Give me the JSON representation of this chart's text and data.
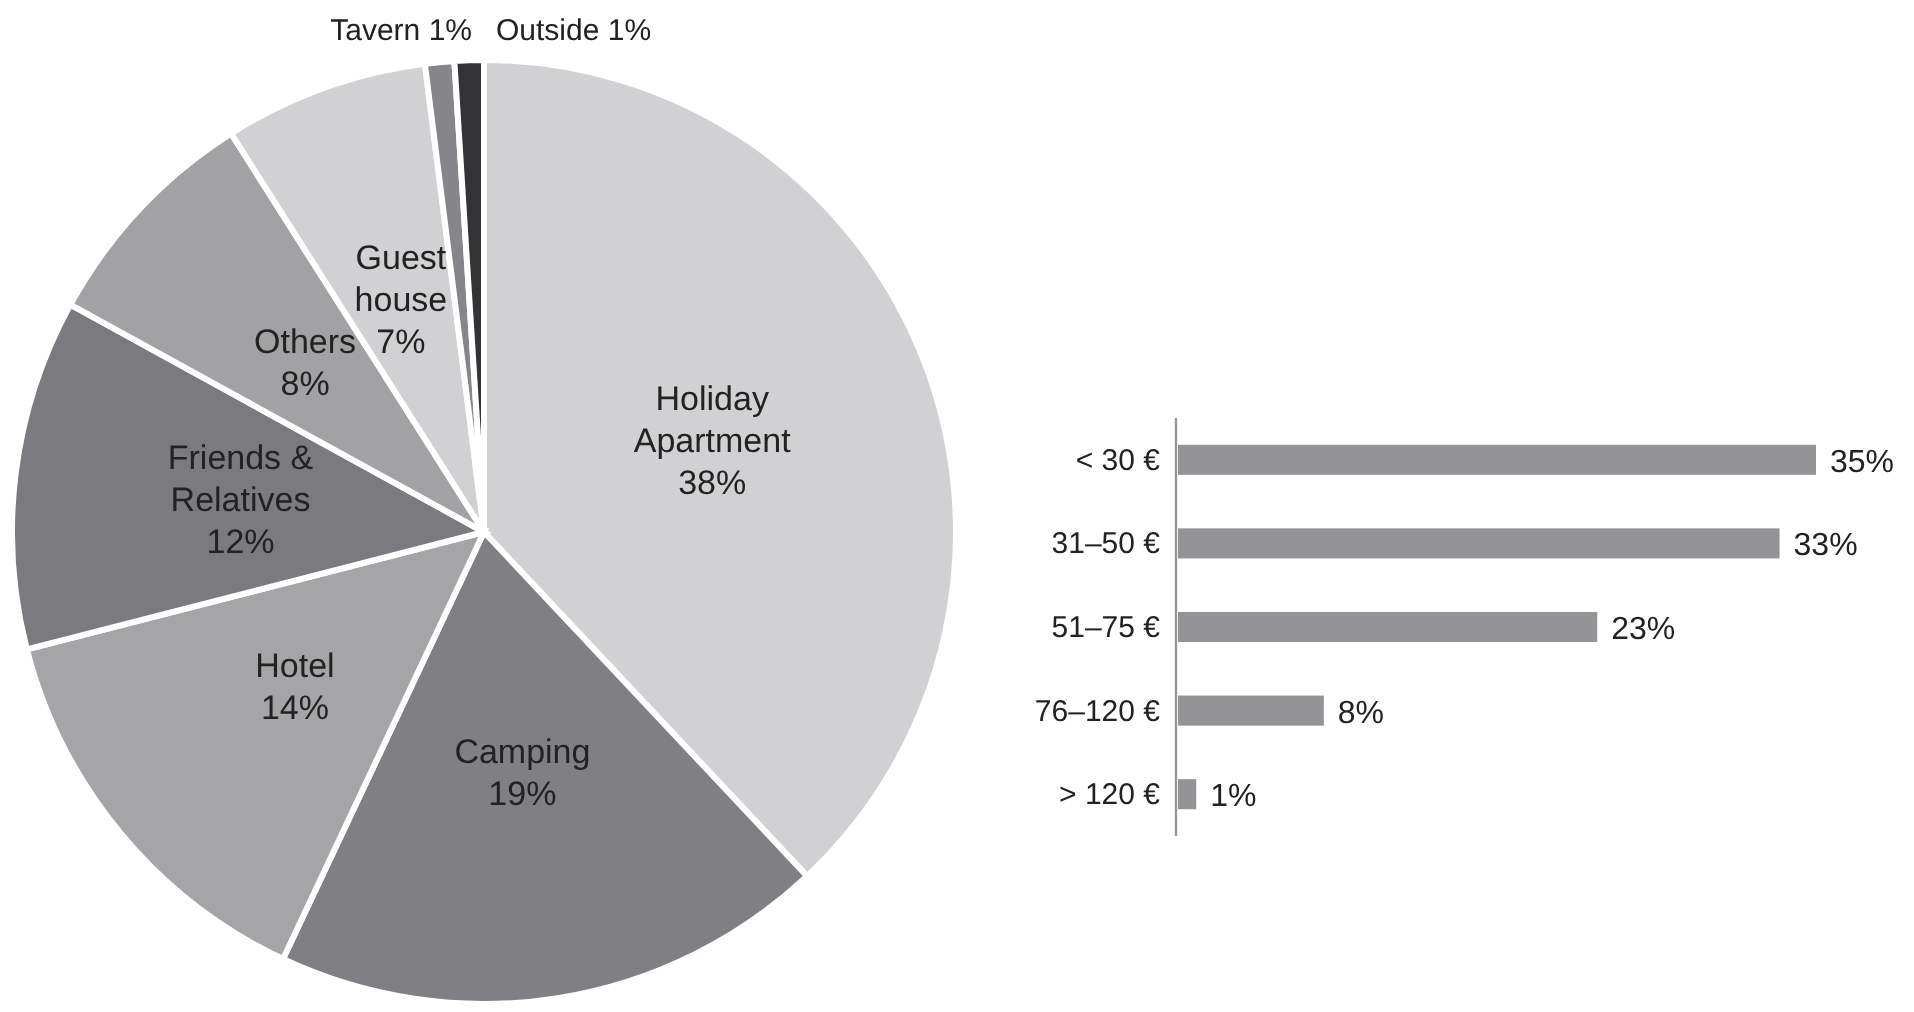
{
  "chart_data": [
    {
      "type": "pie",
      "categories": [
        "Holiday Apartment",
        "Camping",
        "Hotel",
        "Friends & Relatives",
        "Others",
        "Guest house",
        "Tavern",
        "Outside"
      ],
      "values": [
        38,
        19,
        14,
        12,
        8,
        7,
        1,
        1
      ],
      "colors": [
        "#d1d1d3",
        "#808084",
        "#a5a5a8",
        "#7b7b7f",
        "#a2a2a5",
        "#d1d1d3",
        "#86868a",
        "#333336"
      ],
      "value_labels": [
        "38%",
        "19%",
        "14%",
        "12%",
        "8%",
        "7%",
        "1%",
        "1%"
      ]
    },
    {
      "type": "bar",
      "orientation": "horizontal",
      "categories": [
        "< 30 €",
        "31–50 €",
        "51–75 €",
        "76–120 €",
        "> 120 €"
      ],
      "values": [
        35,
        33,
        23,
        8,
        1
      ],
      "color": "#949497",
      "value_labels": [
        "35%",
        "33%",
        "23%",
        "8%",
        "1%"
      ],
      "xlim": [
        0,
        35
      ]
    }
  ]
}
